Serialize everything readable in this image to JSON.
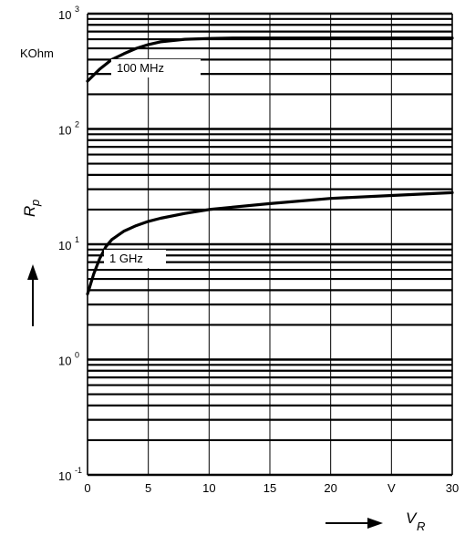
{
  "chart_data": {
    "type": "line",
    "y_scale": "log",
    "grid": true,
    "x_ticks": [
      "0",
      "5",
      "10",
      "15",
      "20",
      "V",
      "30"
    ],
    "y_ticks": [
      {
        "base": "10",
        "exp": "-1"
      },
      {
        "base": "10",
        "exp": "0"
      },
      {
        "base": "10",
        "exp": "1"
      },
      {
        "base": "10",
        "exp": "2"
      },
      {
        "base": "10",
        "exp": "3"
      }
    ],
    "ylabel": {
      "main": "R",
      "sub": "p"
    },
    "xlabel": {
      "main": "V",
      "sub": "R"
    },
    "unit_label": "KOhm",
    "xlim": [
      0,
      30
    ],
    "ylim": [
      0.1,
      1000
    ],
    "series": [
      {
        "name": "100 MHz",
        "x": [
          0,
          1,
          2,
          3,
          4,
          5,
          6,
          8,
          10,
          12,
          15,
          20,
          25,
          30
        ],
        "values": [
          260,
          330,
          400,
          450,
          500,
          540,
          570,
          600,
          610,
          615,
          615,
          615,
          615,
          615
        ]
      },
      {
        "name": "1 GHz",
        "x": [
          0,
          0.5,
          1,
          1.5,
          2,
          3,
          4,
          5,
          6,
          8,
          10,
          12,
          15,
          20,
          25,
          30
        ],
        "values": [
          3.7,
          5.5,
          7.5,
          9.5,
          11,
          13,
          14.5,
          15.8,
          16.8,
          18.5,
          20,
          21,
          22.5,
          25,
          26.5,
          28
        ]
      }
    ]
  }
}
